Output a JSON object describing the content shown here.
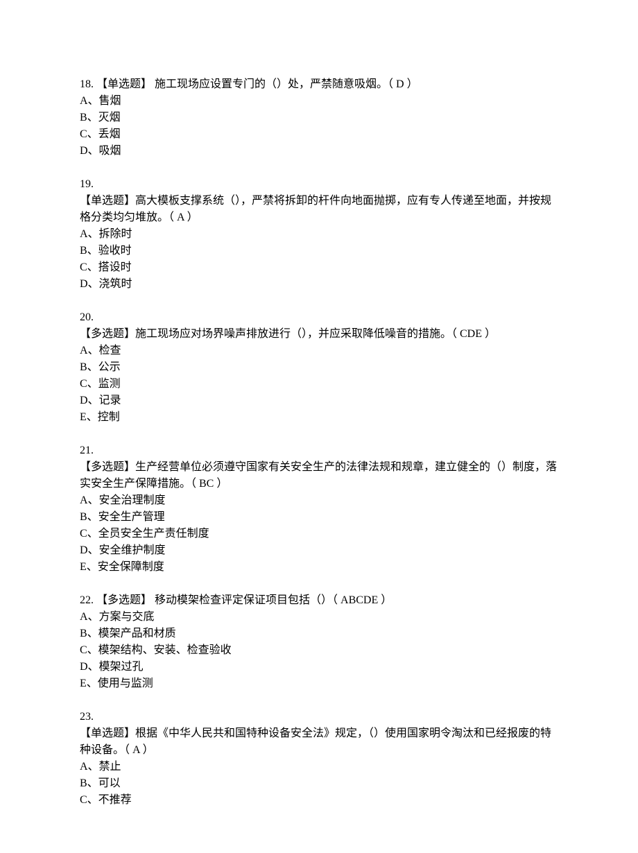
{
  "questions": [
    {
      "num": "18.",
      "tag": "【单选题】",
      "text": "施工现场应设置专门的（）处，严禁随意吸烟。（   D   ）",
      "options": [
        "A、售烟",
        "B、灭烟",
        "C、丢烟",
        "D、吸烟"
      ]
    },
    {
      "num": "19.",
      "tag": "",
      "text": "【单选题】高大模板支撑系统（），严禁将拆卸的杆件向地面抛掷，应有专人传递至地面，并按规格分类均匀堆放。（   A   ）",
      "options": [
        "A、拆除时",
        "B、验收时",
        "C、搭设时",
        "D、浇筑时"
      ]
    },
    {
      "num": "20.",
      "tag": "",
      "text": "【多选题】施工现场应对场界噪声排放进行（），并应采取降低噪音的措施。（   CDE  ）",
      "options": [
        "A、检查",
        "B、公示",
        "C、监测",
        "D、记录",
        "E、控制"
      ]
    },
    {
      "num": "21.",
      "tag": "",
      "text": "【多选题】生产经营单位必须遵守国家有关安全生产的法律法规和规章，建立健全的（）制度，落实安全生产保障措施。（   BC   ）",
      "options": [
        "A、安全治理制度",
        "B、安全生产管理",
        "C、全员安全生产责任制度",
        "D、安全维护制度",
        "E、安全保障制度"
      ]
    },
    {
      "num": "22.",
      "tag": "【多选题】",
      "text": "移动模架检查评定保证项目包括（）（   ABCDE   ）",
      "options": [
        "A、方案与交底",
        "B、模架产品和材质",
        "C、模架结构、安装、检查验收",
        "D、模架过孔",
        "E、使用与监测"
      ]
    },
    {
      "num": "23.",
      "tag": "",
      "text": "【单选题】根据《中华人民共和国特种设备安全法》规定，（）使用国家明令淘汰和已经报废的特种设备。（   A   ）",
      "options": [
        "A、禁止",
        "B、可以",
        "C、不推荐"
      ]
    }
  ]
}
